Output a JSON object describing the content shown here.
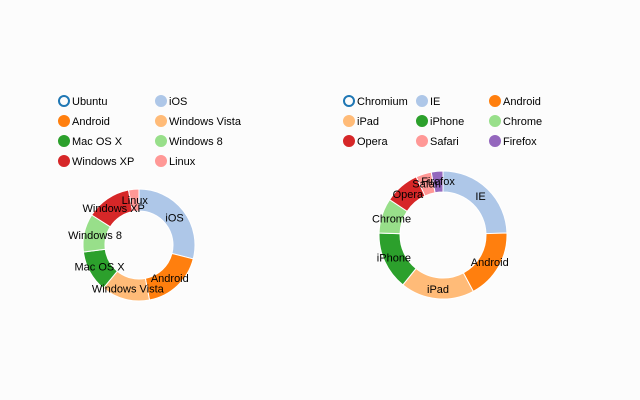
{
  "chart_data": [
    {
      "type": "pie",
      "donut": true,
      "legend_placement": "top",
      "categories": [
        "Ubuntu",
        "iOS",
        "Android",
        "Windows Vista",
        "Mac OS X",
        "Windows 8",
        "Windows XP",
        "Linux"
      ],
      "values": [
        0,
        29,
        18,
        14,
        12,
        11,
        13,
        3
      ],
      "legend_disabled": [
        "Ubuntu"
      ],
      "colors": [
        "#1f77b4",
        "#aec7e8",
        "#ff7f0e",
        "#ffbb78",
        "#2ca02c",
        "#98df8a",
        "#d62728",
        "#ff9896"
      ]
    },
    {
      "type": "pie",
      "donut": true,
      "legend_placement": "top",
      "categories": [
        "Chromium",
        "IE",
        "Android",
        "iPad",
        "iPhone",
        "Chrome",
        "Opera",
        "Safari",
        "Firefox"
      ],
      "values": [
        0,
        25,
        18,
        19,
        15,
        9,
        9,
        4,
        3
      ],
      "legend_disabled": [
        "Chromium"
      ],
      "colors": [
        "#1f77b4",
        "#aec7e8",
        "#ff7f0e",
        "#ffbb78",
        "#2ca02c",
        "#98df8a",
        "#d62728",
        "#ff9896",
        "#9467bd"
      ]
    }
  ]
}
